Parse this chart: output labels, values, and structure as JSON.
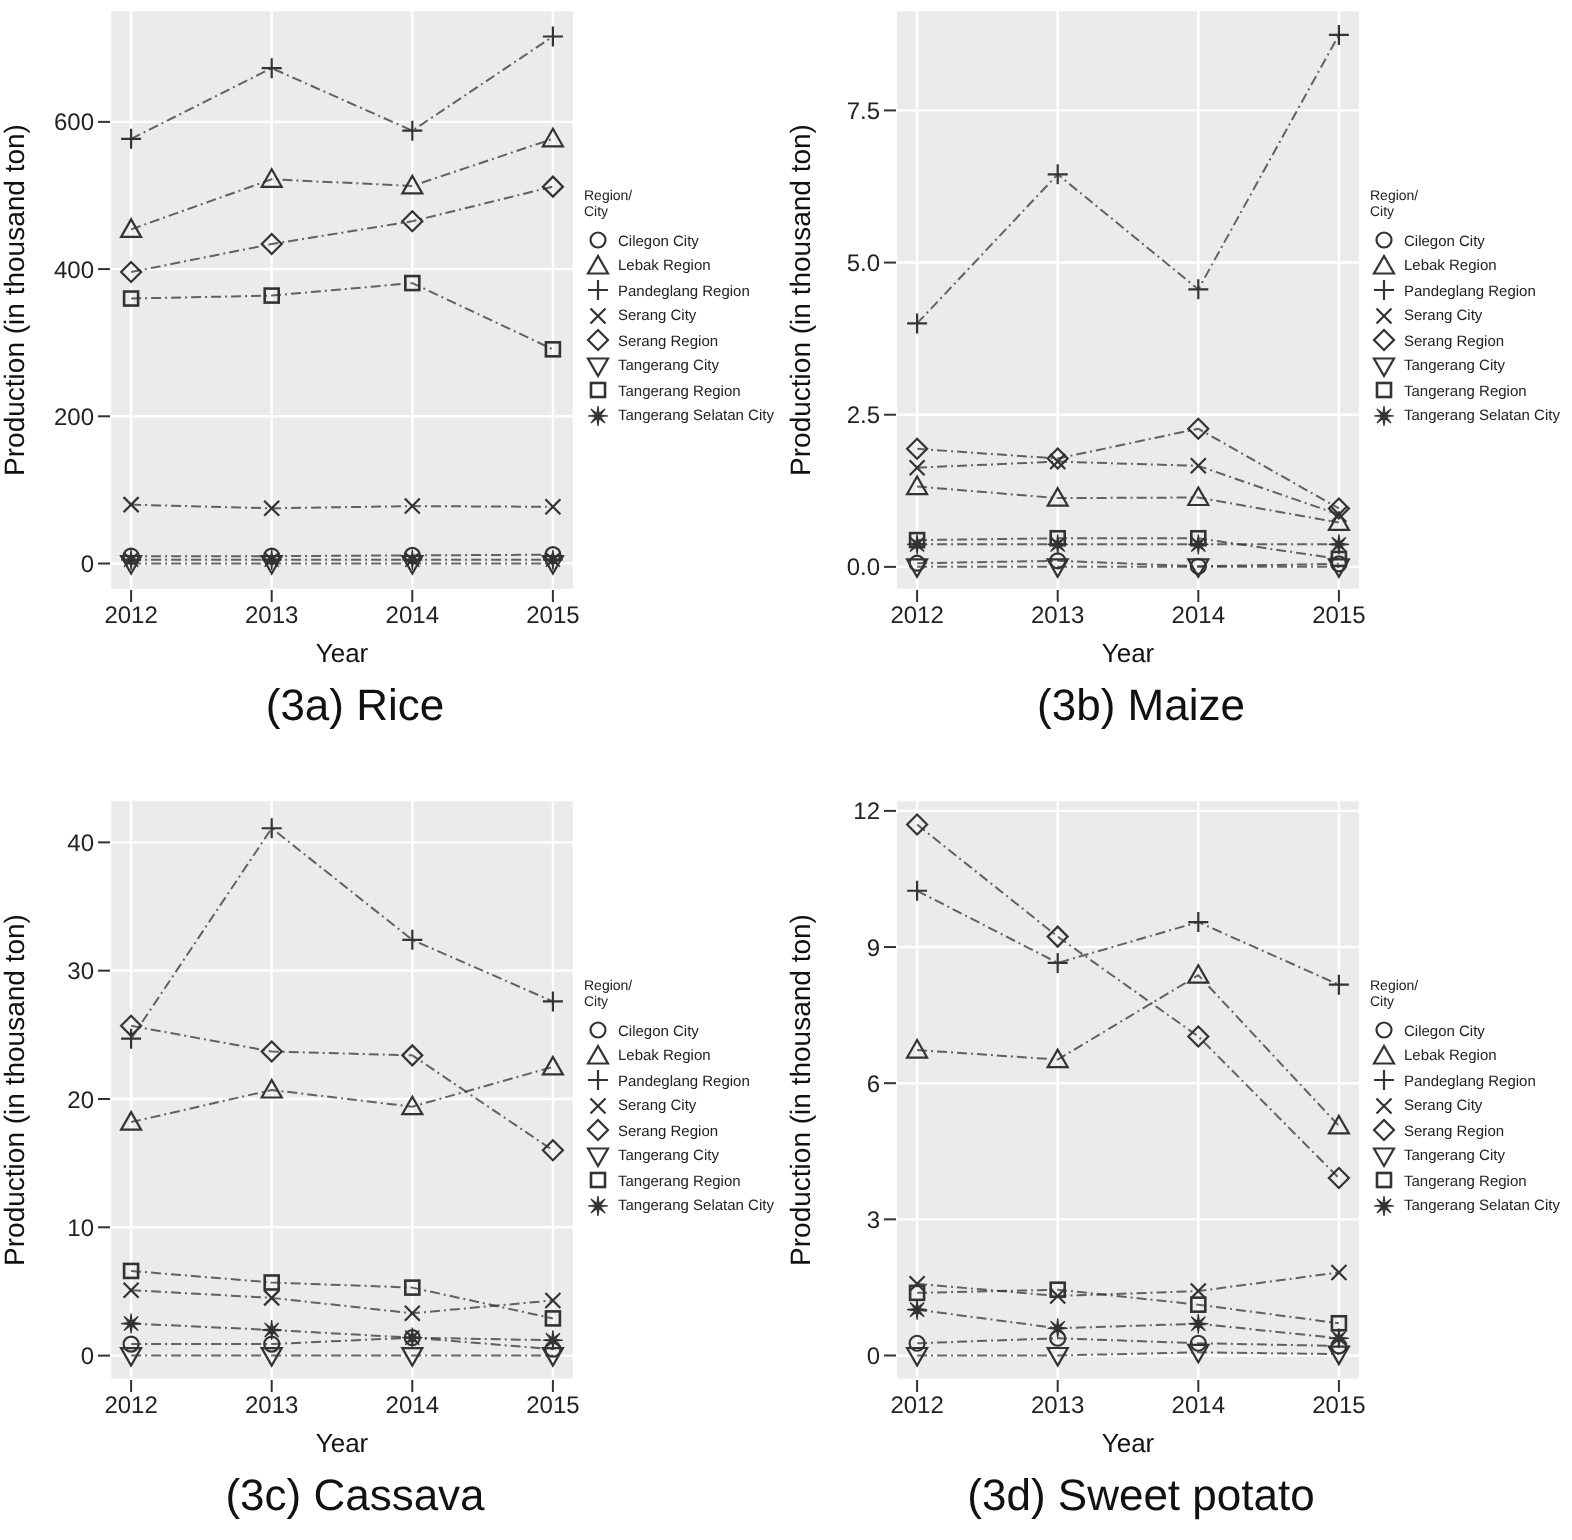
{
  "chart_data": [
    {
      "type": "line",
      "title": "(3a) Rice",
      "xlabel": "Year",
      "ylabel": "Production (in thousand ton)",
      "legend_title": "Region/\nCity",
      "legend": "right",
      "grid": true,
      "line_style": "dashed",
      "x": [
        2012,
        2013,
        2014,
        2015
      ],
      "xlim": [
        2011.85,
        2015.15
      ],
      "xticks": [
        2012,
        2013,
        2014,
        2015
      ],
      "ylim": [
        -36,
        752
      ],
      "yticks": [
        0,
        200,
        400,
        600
      ],
      "series": [
        {
          "name": "Cilegon City",
          "color": "#333333",
          "marker": "circle",
          "values": [
            10,
            10,
            11,
            12
          ]
        },
        {
          "name": "Lebak Region",
          "color": "#333333",
          "marker": "triangle",
          "values": [
            454,
            522,
            513,
            577
          ]
        },
        {
          "name": "Pandeglang Region",
          "color": "#333333",
          "marker": "cross",
          "values": [
            577,
            673,
            588,
            716
          ]
        },
        {
          "name": "Serang City",
          "color": "#333333",
          "marker": "x",
          "values": [
            80,
            75,
            78,
            77
          ]
        },
        {
          "name": "Serang Region",
          "color": "#333333",
          "marker": "diamond",
          "values": [
            396,
            434,
            465,
            512
          ]
        },
        {
          "name": "Tangerang City",
          "color": "#333333",
          "marker": "triangle-down",
          "values": [
            0,
            0,
            0,
            0
          ]
        },
        {
          "name": "Tangerang Region",
          "color": "#333333",
          "marker": "square",
          "values": [
            360,
            364,
            381,
            291
          ]
        },
        {
          "name": "Tangerang Selatan City",
          "color": "#333333",
          "marker": "star",
          "values": [
            5,
            5,
            5,
            5
          ]
        }
      ]
    },
    {
      "type": "line",
      "title": "(3b) Maize",
      "xlabel": "Year",
      "ylabel": "Production (in thousand ton)",
      "legend_title": "Region/\nCity",
      "legend": "right",
      "grid": true,
      "line_style": "dashed",
      "x": [
        2012,
        2013,
        2014,
        2015
      ],
      "xlim": [
        2011.85,
        2015.15
      ],
      "xticks": [
        2012,
        2013,
        2014,
        2015
      ],
      "ylim": [
        -0.38,
        9.15
      ],
      "yticks": [
        {
          "value": 0,
          "label": "0.0"
        },
        {
          "value": 2.5,
          "label": "2.5"
        },
        {
          "value": 5,
          "label": "5.0"
        },
        {
          "value": 7.5,
          "label": "7.5"
        }
      ],
      "series": [
        {
          "name": "Cilegon City",
          "color": "#333333",
          "marker": "circle",
          "values": [
            0.06,
            0.1,
            0.01,
            0.05
          ]
        },
        {
          "name": "Lebak Region",
          "color": "#333333",
          "marker": "triangle",
          "values": [
            1.32,
            1.13,
            1.14,
            0.73
          ]
        },
        {
          "name": "Pandeglang Region",
          "color": "#333333",
          "marker": "cross",
          "values": [
            4.0,
            6.45,
            4.56,
            8.74
          ]
        },
        {
          "name": "Serang City",
          "color": "#333333",
          "marker": "x",
          "values": [
            1.63,
            1.73,
            1.66,
            0.86
          ]
        },
        {
          "name": "Serang Region",
          "color": "#333333",
          "marker": "diamond",
          "values": [
            1.94,
            1.78,
            2.27,
            0.96
          ]
        },
        {
          "name": "Tangerang City",
          "color": "#333333",
          "marker": "triangle-down",
          "values": [
            0,
            0,
            0,
            0
          ]
        },
        {
          "name": "Tangerang Region",
          "color": "#333333",
          "marker": "square",
          "values": [
            0.44,
            0.47,
            0.47,
            0.13
          ]
        },
        {
          "name": "Tangerang Selatan City",
          "color": "#333333",
          "marker": "star",
          "values": [
            0.37,
            0.37,
            0.37,
            0.37
          ]
        }
      ]
    },
    {
      "type": "line",
      "title": "(3c) Cassava",
      "xlabel": "Year",
      "ylabel": "Production (in thousand ton)",
      "legend_title": "Region/\nCity",
      "legend": "right",
      "grid": true,
      "line_style": "dashed",
      "x": [
        2012,
        2013,
        2014,
        2015
      ],
      "xlim": [
        2011.85,
        2015.15
      ],
      "xticks": [
        2012,
        2013,
        2014,
        2015
      ],
      "ylim": [
        -1.9,
        43.3
      ],
      "yticks": [
        0,
        10,
        20,
        30,
        40
      ],
      "series": [
        {
          "name": "Cilegon City",
          "color": "#333333",
          "marker": "circle",
          "values": [
            0.9,
            0.9,
            1.4,
            0.5
          ]
        },
        {
          "name": "Lebak Region",
          "color": "#333333",
          "marker": "triangle",
          "values": [
            18.2,
            20.7,
            19.4,
            22.5
          ]
        },
        {
          "name": "Pandeglang Region",
          "color": "#333333",
          "marker": "cross",
          "values": [
            24.7,
            41.1,
            32.4,
            27.6
          ]
        },
        {
          "name": "Serang City",
          "color": "#333333",
          "marker": "x",
          "values": [
            5.1,
            4.5,
            3.3,
            4.3
          ]
        },
        {
          "name": "Serang Region",
          "color": "#333333",
          "marker": "diamond",
          "values": [
            25.7,
            23.7,
            23.4,
            16.0
          ]
        },
        {
          "name": "Tangerang City",
          "color": "#333333",
          "marker": "triangle-down",
          "values": [
            0,
            0,
            0,
            0
          ]
        },
        {
          "name": "Tangerang Region",
          "color": "#333333",
          "marker": "square",
          "values": [
            6.6,
            5.7,
            5.3,
            2.9
          ]
        },
        {
          "name": "Tangerang Selatan City",
          "color": "#333333",
          "marker": "star",
          "values": [
            2.5,
            2.0,
            1.4,
            1.2
          ]
        }
      ]
    },
    {
      "type": "line",
      "title": "(3d) Sweet potato",
      "xlabel": "Year",
      "ylabel": "Production (in thousand ton)",
      "legend_title": "Region/\nCity",
      "legend": "right",
      "grid": true,
      "line_style": "dashed",
      "x": [
        2012,
        2013,
        2014,
        2015
      ],
      "xlim": [
        2011.85,
        2015.15
      ],
      "xticks": [
        2012,
        2013,
        2014,
        2015
      ],
      "ylim": [
        -0.54,
        12.24
      ],
      "yticks": [
        0,
        3,
        6,
        9,
        12
      ],
      "series": [
        {
          "name": "Cilegon City",
          "color": "#333333",
          "marker": "circle",
          "values": [
            0.27,
            0.38,
            0.27,
            0.21
          ]
        },
        {
          "name": "Lebak Region",
          "color": "#333333",
          "marker": "triangle",
          "values": [
            6.73,
            6.52,
            8.38,
            5.06
          ]
        },
        {
          "name": "Pandeglang Region",
          "color": "#333333",
          "marker": "cross",
          "values": [
            10.24,
            8.65,
            9.55,
            8.17
          ]
        },
        {
          "name": "Serang City",
          "color": "#333333",
          "marker": "x",
          "values": [
            1.58,
            1.31,
            1.42,
            1.83
          ]
        },
        {
          "name": "Serang Region",
          "color": "#333333",
          "marker": "diamond",
          "values": [
            11.7,
            9.23,
            7.03,
            3.91
          ]
        },
        {
          "name": "Tangerang City",
          "color": "#333333",
          "marker": "triangle-down",
          "values": [
            0,
            0,
            0.07,
            0.03
          ]
        },
        {
          "name": "Tangerang Region",
          "color": "#333333",
          "marker": "square",
          "values": [
            1.38,
            1.45,
            1.12,
            0.71
          ]
        },
        {
          "name": "Tangerang Selatan City",
          "color": "#333333",
          "marker": "star",
          "values": [
            1.01,
            0.6,
            0.7,
            0.38
          ]
        }
      ]
    }
  ]
}
